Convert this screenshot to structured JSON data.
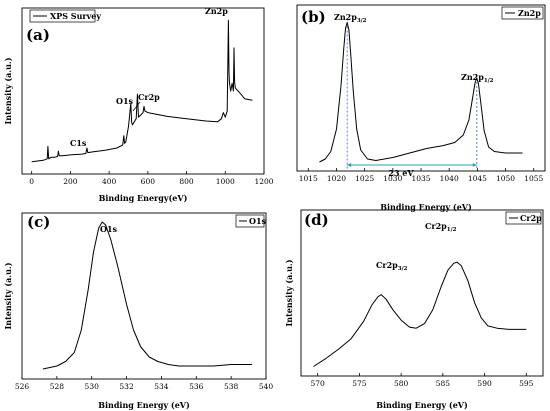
{
  "chart_data": [
    {
      "type": "line",
      "panel_label": "(a)",
      "legend": [
        "XPS Survey"
      ],
      "xlabel": "Binding Energy(eV)",
      "ylabel": "Intensity (a.u.)",
      "xlim": [
        -50,
        1200
      ],
      "xticks": [
        0,
        200,
        400,
        600,
        800,
        1000,
        1200
      ],
      "ylim": [
        0,
        100
      ],
      "annotations": [
        "C1s",
        "O1s",
        "Cr2p",
        "Zn2p"
      ],
      "series": [
        {
          "x": [
            0,
            60,
            80,
            84,
            88,
            100,
            120,
            134,
            138,
            142,
            160,
            200,
            260,
            280,
            285,
            290,
            320,
            380,
            440,
            470,
            476,
            480,
            486,
            500,
            512,
            516,
            520,
            530,
            540,
            546,
            552,
            560,
            575,
            580,
            585,
            600,
            640,
            700,
            800,
            900,
            960,
            980,
            990,
            1000,
            1010,
            1016,
            1019,
            1022,
            1028,
            1035,
            1042,
            1045,
            1048,
            1052,
            1080,
            1100,
            1140
          ],
          "y": [
            4,
            5,
            6,
            14,
            6,
            7,
            7,
            7.5,
            11,
            8,
            8,
            8.5,
            9,
            9.5,
            13,
            10,
            10.5,
            11.5,
            13,
            15,
            21,
            16,
            17,
            27,
            42,
            30,
            28,
            30,
            32,
            48,
            33,
            34,
            36,
            40,
            37,
            36,
            35,
            33.5,
            32,
            30.5,
            30,
            32,
            36,
            33,
            37,
            96,
            62,
            55,
            50,
            55,
            50,
            78,
            56,
            52,
            48,
            45,
            44
          ]
        }
      ]
    },
    {
      "type": "line",
      "panel_label": "(b)",
      "legend": [
        "Zn2p"
      ],
      "xlabel": "Binding Energy (eV)",
      "ylabel": "",
      "xlim": [
        1013,
        1057
      ],
      "xticks": [
        1015,
        1020,
        1025,
        1030,
        1035,
        1040,
        1045,
        1050,
        1055
      ],
      "ylim": [
        0,
        100
      ],
      "annotations": [
        "Zn2p3/2",
        "Zn2p1/2",
        "23 eV"
      ],
      "peak_markers": [
        1021.9,
        1044.9
      ],
      "series": [
        {
          "x": [
            1017,
            1018,
            1019,
            1020,
            1020.8,
            1021.3,
            1021.6,
            1021.9,
            1022.2,
            1022.5,
            1023,
            1023.6,
            1024.3,
            1025.5,
            1027,
            1030,
            1033,
            1036,
            1039,
            1041,
            1042.5,
            1043.5,
            1044.2,
            1044.6,
            1044.9,
            1045.2,
            1045.6,
            1046.2,
            1047,
            1048,
            1050,
            1053
          ],
          "y": [
            4,
            6,
            11,
            26,
            55,
            80,
            93,
            97,
            92,
            78,
            50,
            26,
            12,
            6,
            5,
            7,
            10,
            13,
            15,
            17,
            22,
            32,
            48,
            57,
            60,
            56,
            44,
            25,
            14,
            11,
            10,
            10
          ]
        }
      ]
    },
    {
      "type": "line",
      "panel_label": "(c)",
      "legend": [
        "O1s"
      ],
      "xlabel": "Binding Energy (eV)",
      "ylabel": "Intensity (a.u.)",
      "xlim": [
        526,
        540
      ],
      "xticks": [
        526,
        528,
        530,
        532,
        534,
        536,
        538,
        540
      ],
      "ylim": [
        0,
        100
      ],
      "series": [
        {
          "x": [
            527.2,
            527.6,
            528,
            528.5,
            529,
            529.4,
            529.8,
            530.1,
            530.4,
            530.6,
            530.8,
            531.1,
            531.5,
            532,
            532.4,
            532.8,
            533.3,
            533.8,
            534.4,
            535,
            536,
            537,
            538,
            539.2
          ],
          "y": [
            2,
            3,
            4,
            7,
            13,
            28,
            55,
            80,
            96,
            100,
            98,
            88,
            70,
            45,
            28,
            17,
            10,
            7,
            5,
            4,
            4,
            4,
            5,
            5
          ]
        }
      ]
    },
    {
      "type": "line",
      "panel_label": "(d)",
      "legend": [
        "Cr2p"
      ],
      "xlabel": "Binding Energy (eV)",
      "ylabel": "Intensity (a.u.)",
      "xlim": [
        568,
        597
      ],
      "xticks": [
        570,
        575,
        580,
        585,
        590,
        595
      ],
      "ylim": [
        0,
        100
      ],
      "annotations": [
        "Cr2p3/2",
        "Cr2p1/2"
      ],
      "series": [
        {
          "x": [
            569.5,
            571,
            572.5,
            574,
            575.5,
            576.5,
            577.2,
            577.6,
            578.2,
            579,
            580,
            581,
            581.8,
            582.8,
            583.8,
            584.8,
            585.6,
            586.3,
            586.7,
            587.2,
            588,
            588.8,
            589.6,
            590.4,
            591.5,
            593,
            595
          ],
          "y": [
            3,
            10,
            18,
            27,
            42,
            56,
            63,
            65,
            61,
            52,
            43,
            37,
            36,
            40,
            52,
            72,
            86,
            92,
            93,
            90,
            77,
            58,
            45,
            38,
            36,
            35,
            35
          ]
        }
      ]
    }
  ]
}
